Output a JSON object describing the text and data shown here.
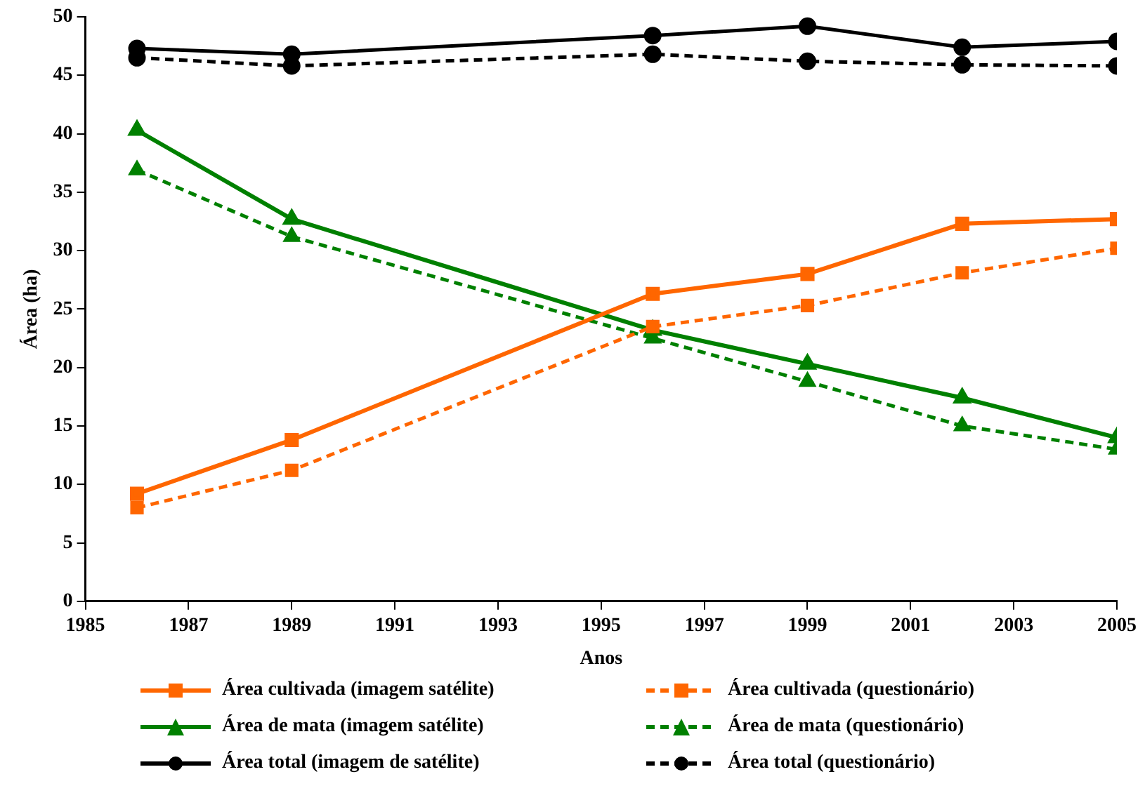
{
  "chart_data": {
    "type": "line",
    "xlabel": "Anos",
    "ylabel": "Área (ha)",
    "x": [
      1986,
      1989,
      1996,
      1999,
      2002,
      2005
    ],
    "xlim": [
      1985,
      2005
    ],
    "xticks": [
      1985,
      1987,
      1989,
      1991,
      1993,
      1995,
      1997,
      1999,
      2001,
      2003,
      2005
    ],
    "ylim": [
      0,
      50
    ],
    "yticks": [
      0,
      5,
      10,
      15,
      20,
      25,
      30,
      35,
      40,
      45,
      50
    ],
    "grid": false,
    "legend": "bottom",
    "series": [
      {
        "name": "Área cultivada (imagem satélite)",
        "color": "#ff6600",
        "marker": "square",
        "line_style": "solid",
        "values": [
          9.2,
          13.8,
          26.3,
          28.0,
          32.3,
          32.7
        ]
      },
      {
        "name": "Área cultivada (questionário)",
        "color": "#ff6600",
        "marker": "square",
        "line_style": "dashed",
        "values": [
          8.0,
          11.2,
          23.5,
          25.3,
          28.1,
          30.2
        ]
      },
      {
        "name": "Área de mata (imagem satélite)",
        "color": "#008000",
        "marker": "triangle",
        "line_style": "solid",
        "values": [
          40.3,
          32.7,
          23.2,
          20.3,
          17.4,
          14.0
        ]
      },
      {
        "name": "Área de mata (questionário)",
        "color": "#008000",
        "marker": "triangle",
        "line_style": "dashed",
        "values": [
          36.9,
          31.2,
          22.5,
          18.8,
          15.0,
          13.0
        ]
      },
      {
        "name": "Área total (imagem de satélite)",
        "color": "#000000",
        "marker": "circle",
        "line_style": "solid",
        "values": [
          47.3,
          46.8,
          48.4,
          49.2,
          47.4,
          47.9
        ]
      },
      {
        "name": "Área total (questionário)",
        "color": "#000000",
        "marker": "circle",
        "line_style": "dashed",
        "values": [
          46.5,
          45.8,
          46.8,
          46.2,
          45.9,
          45.8
        ]
      }
    ]
  }
}
